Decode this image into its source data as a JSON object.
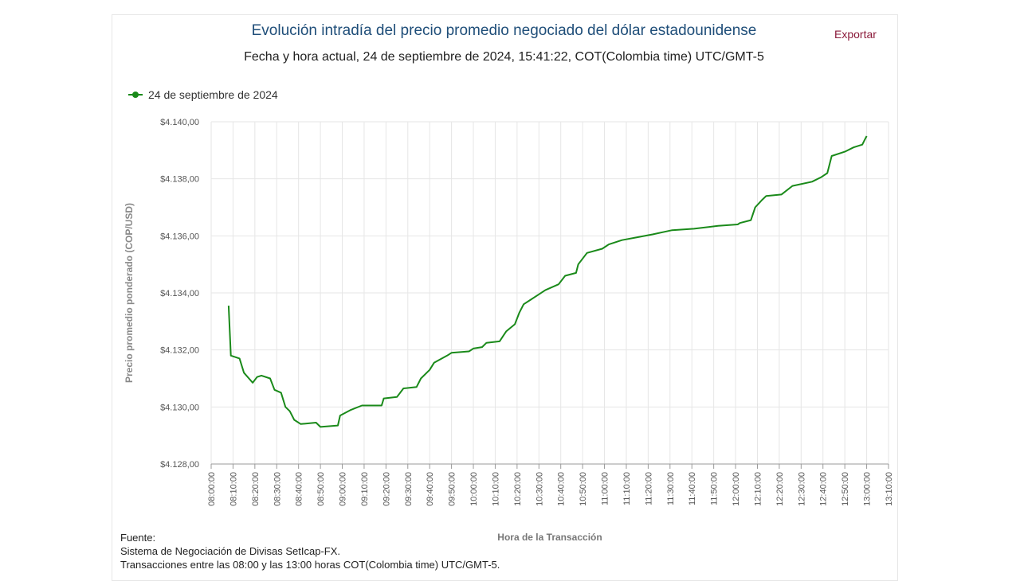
{
  "header": {
    "title": "Evolución intradía del precio promedio negociado del dólar estadounidense",
    "subtitle": "Fecha y hora actual, 24 de septiembre de 2024, 15:41:22, COT(Colombia time) UTC/GMT-5",
    "export_label": "Exportar"
  },
  "footer": {
    "source_label": "Fuente:",
    "source_line1": "Sistema de Negociación de Divisas SetIcap-FX.",
    "source_line2": "Transacciones entre las 08:00 y las 13:00 horas COT(Colombia time) UTC/GMT-5."
  },
  "colors": {
    "series": "#1a8a1a",
    "title": "#1f4e79",
    "export": "#8b1a3a",
    "grid": "#e6e6e6"
  },
  "chart_data": {
    "type": "line",
    "title": "Evolución intradía del precio promedio negociado del dólar estadounidense",
    "xlabel": "Hora de la Transacción",
    "ylabel": "Precio promedio ponderado (COP/USD)",
    "ylim": [
      4128,
      4140
    ],
    "xlim": [
      "08:00:00",
      "13:10:00"
    ],
    "grid": true,
    "legend": "top-left",
    "yticks": [
      "$4.128,00",
      "$4.130,00",
      "$4.132,00",
      "$4.134,00",
      "$4.136,00",
      "$4.138,00",
      "$4.140,00"
    ],
    "xticks": [
      "08:00:00",
      "08:10:00",
      "08:20:00",
      "08:30:00",
      "08:40:00",
      "08:50:00",
      "09:00:00",
      "09:10:00",
      "09:20:00",
      "09:30:00",
      "09:40:00",
      "09:50:00",
      "10:00:00",
      "10:10:00",
      "10:20:00",
      "10:30:00",
      "10:40:00",
      "10:50:00",
      "11:00:00",
      "11:10:00",
      "11:20:00",
      "11:30:00",
      "11:40:00",
      "11:50:00",
      "12:00:00",
      "12:10:00",
      "12:20:00",
      "12:30:00",
      "12:40:00",
      "12:50:00",
      "13:00:00",
      "13:10:00"
    ],
    "series": [
      {
        "name": "24 de septiembre de 2024",
        "x": [
          "08:08",
          "08:09",
          "08:13",
          "08:15",
          "08:19",
          "08:21",
          "08:23",
          "08:27",
          "08:29",
          "08:32",
          "08:34",
          "08:36",
          "08:38",
          "08:41",
          "08:48",
          "08:50",
          "08:58",
          "08:59",
          "09:04",
          "09:09",
          "09:18",
          "09:19",
          "09:25",
          "09:28",
          "09:34",
          "09:36",
          "09:40",
          "09:42",
          "09:48",
          "09:50",
          "09:58",
          "10:00",
          "10:04",
          "10:06",
          "10:12",
          "10:15",
          "10:19",
          "10:21",
          "10:23",
          "10:26",
          "10:30",
          "10:33",
          "10:39",
          "10:42",
          "10:47",
          "10:48",
          "10:52",
          "10:59",
          "11:02",
          "11:08",
          "11:15",
          "11:22",
          "11:31",
          "11:41",
          "11:52",
          "12:01",
          "12:02",
          "12:07",
          "12:09",
          "12:12",
          "12:14",
          "12:21",
          "12:26",
          "12:35",
          "12:39",
          "12:42",
          "12:44",
          "12:50",
          "12:54",
          "12:58",
          "12:59",
          "13:00"
        ],
        "values": [
          4133.55,
          4131.8,
          4131.7,
          4131.2,
          4130.85,
          4131.05,
          4131.1,
          4131.0,
          4130.6,
          4130.5,
          4130.0,
          4129.85,
          4129.55,
          4129.4,
          4129.45,
          4129.3,
          4129.35,
          4129.7,
          4129.9,
          4130.05,
          4130.05,
          4130.3,
          4130.35,
          4130.65,
          4130.7,
          4131.0,
          4131.3,
          4131.55,
          4131.8,
          4131.9,
          4131.95,
          4132.05,
          4132.1,
          4132.25,
          4132.3,
          4132.65,
          4132.9,
          4133.3,
          4133.6,
          4133.75,
          4133.95,
          4134.1,
          4134.3,
          4134.6,
          4134.7,
          4135.0,
          4135.4,
          4135.55,
          4135.7,
          4135.85,
          4135.95,
          4136.05,
          4136.2,
          4136.25,
          4136.35,
          4136.4,
          4136.45,
          4136.55,
          4137.0,
          4137.25,
          4137.4,
          4137.45,
          4137.75,
          4137.9,
          4138.05,
          4138.2,
          4138.8,
          4138.95,
          4139.1,
          4139.2,
          4139.35,
          4139.5
        ]
      }
    ]
  }
}
